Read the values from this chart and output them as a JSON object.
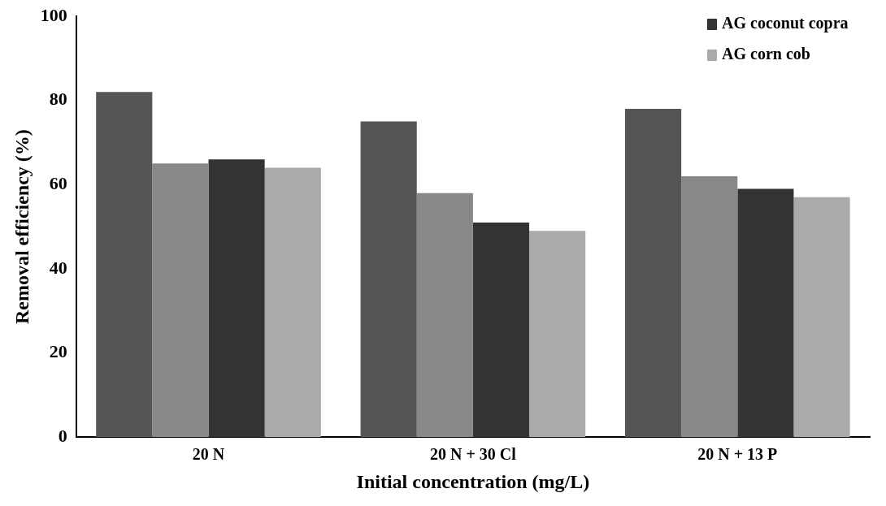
{
  "chart_data": {
    "type": "bar",
    "xlabel": "Initial concentration (mg/L)",
    "ylabel": "Removal efficiency (%)",
    "categories": [
      "20 N",
      "20 N + 30 Cl",
      "20 N + 13 P"
    ],
    "series": [
      {
        "color": "#555555",
        "values": [
          82,
          75,
          78
        ]
      },
      {
        "color": "#888888",
        "values": [
          65,
          58,
          62
        ]
      },
      {
        "name": "AG coconut copra",
        "color": "#333333",
        "values": [
          66,
          51,
          59
        ]
      },
      {
        "name": "AG corn cob",
        "color": "#aaaaaa",
        "values": [
          64,
          49,
          57
        ]
      }
    ],
    "ylim": [
      0,
      100
    ],
    "yticks": [
      0,
      20,
      40,
      60,
      80,
      100
    ],
    "grid": false,
    "legend": "top right"
  }
}
